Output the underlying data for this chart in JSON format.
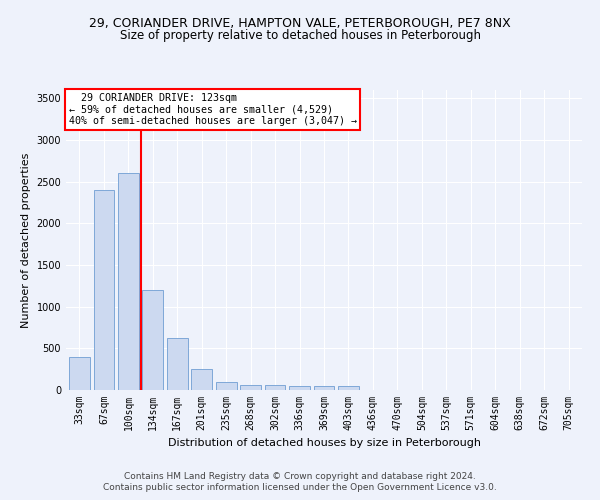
{
  "title_line1": "29, CORIANDER DRIVE, HAMPTON VALE, PETERBOROUGH, PE7 8NX",
  "title_line2": "Size of property relative to detached houses in Peterborough",
  "xlabel": "Distribution of detached houses by size in Peterborough",
  "ylabel": "Number of detached properties",
  "footnote1": "Contains HM Land Registry data © Crown copyright and database right 2024.",
  "footnote2": "Contains public sector information licensed under the Open Government Licence v3.0.",
  "categories": [
    "33sqm",
    "67sqm",
    "100sqm",
    "134sqm",
    "167sqm",
    "201sqm",
    "235sqm",
    "268sqm",
    "302sqm",
    "336sqm",
    "369sqm",
    "403sqm",
    "436sqm",
    "470sqm",
    "504sqm",
    "537sqm",
    "571sqm",
    "604sqm",
    "638sqm",
    "672sqm",
    "705sqm"
  ],
  "values": [
    400,
    2400,
    2600,
    1200,
    630,
    250,
    100,
    60,
    55,
    50,
    50,
    50,
    0,
    0,
    0,
    0,
    0,
    0,
    0,
    0,
    0
  ],
  "bar_color": "#ccd9f0",
  "bar_edge_color": "#7fa8d8",
  "vline_color": "red",
  "vline_pos": 2.5,
  "annotation_text": "  29 CORIANDER DRIVE: 123sqm\n← 59% of detached houses are smaller (4,529)\n40% of semi-detached houses are larger (3,047) →",
  "annotation_box_color": "white",
  "annotation_box_edge": "red",
  "ylim": [
    0,
    3600
  ],
  "yticks": [
    0,
    500,
    1000,
    1500,
    2000,
    2500,
    3000,
    3500
  ],
  "bg_color": "#eef2fb",
  "plot_bg_color": "#eef2fb",
  "title1_fontsize": 9,
  "title2_fontsize": 8.5,
  "xlabel_fontsize": 8,
  "ylabel_fontsize": 8,
  "tick_fontsize": 7,
  "footnote_fontsize": 6.5
}
